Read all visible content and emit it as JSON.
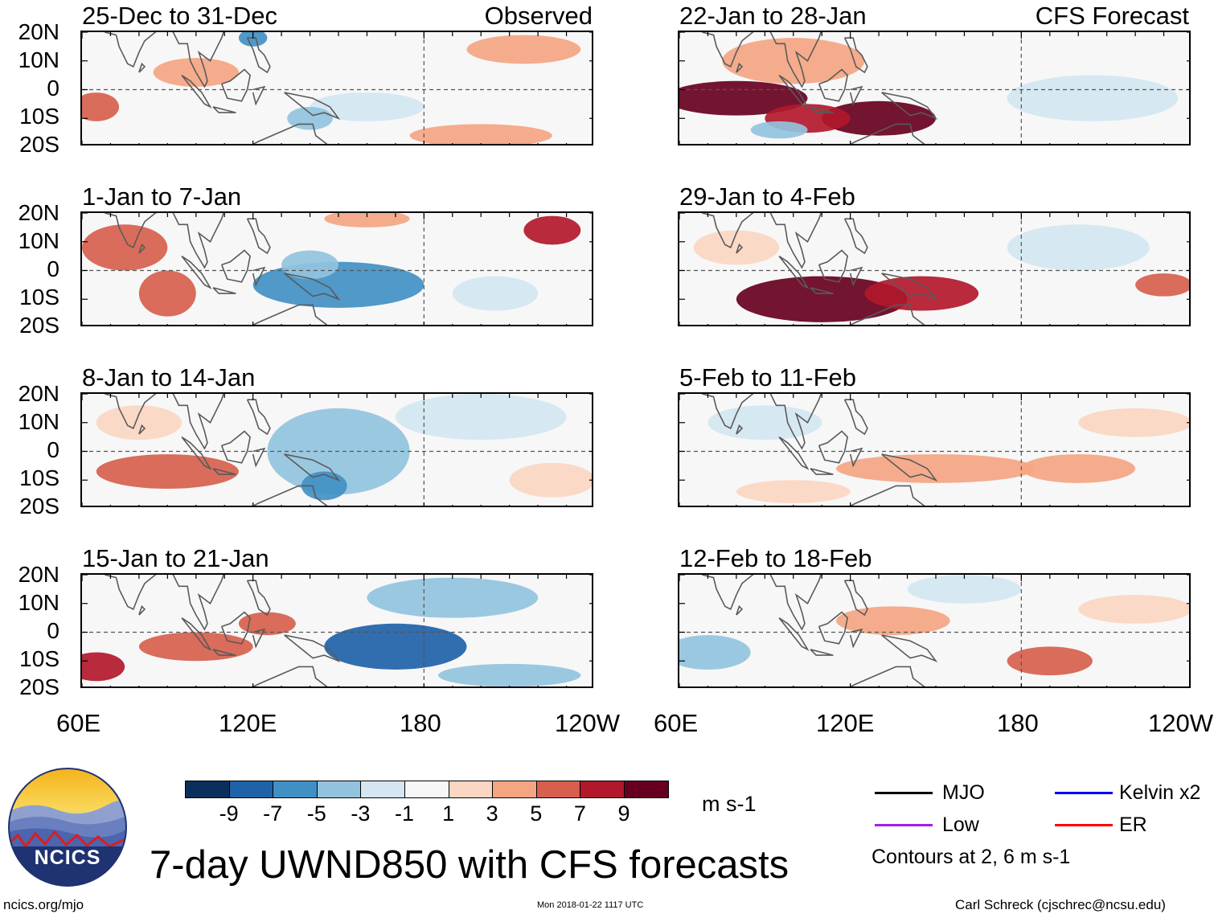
{
  "panels": [
    {
      "title": "25-Dec to 31-Dec",
      "tag": "Observed"
    },
    {
      "title": "1-Jan to 7-Jan",
      "tag": ""
    },
    {
      "title": "8-Jan to 14-Jan",
      "tag": ""
    },
    {
      "title": "15-Jan to 21-Jan",
      "tag": ""
    },
    {
      "title": "22-Jan to 28-Jan",
      "tag": "CFS Forecast"
    },
    {
      "title": "29-Jan to 4-Feb",
      "tag": ""
    },
    {
      "title": "5-Feb to 11-Feb",
      "tag": ""
    },
    {
      "title": "12-Feb to 18-Feb",
      "tag": ""
    }
  ],
  "lat_labels": [
    "20N",
    "10N",
    "0",
    "10S",
    "20S"
  ],
  "lon_labels": [
    "60E",
    "120E",
    "180",
    "120W"
  ],
  "colorbar": {
    "colors": [
      "#0b2f5c",
      "#1f62a8",
      "#4190c4",
      "#92c3de",
      "#d3e6f1",
      "#f7f7f7",
      "#fbd6c2",
      "#f4a582",
      "#d6604d",
      "#b2182b",
      "#67001f"
    ],
    "labels": [
      "-9",
      "-7",
      "-5",
      "-3",
      "-1",
      "1",
      "3",
      "5",
      "7",
      "9"
    ],
    "units": "m s-1"
  },
  "legend": {
    "items": [
      {
        "label": "MJO",
        "color": "#000000"
      },
      {
        "label": "Kelvin x2",
        "color": "#0000ff"
      },
      {
        "label": "Low",
        "color": "#a020f0"
      },
      {
        "label": "ER",
        "color": "#ff0000"
      }
    ],
    "note": "Contours at 2, 6 m s-1"
  },
  "logo_text": "NCICS",
  "title": "7-day UWND850 with CFS forecasts",
  "footer": {
    "left": "ncics.org/mjo",
    "center": "Mon 2018-01-22 1117 UTC",
    "right": "Carl Schreck (cjschrec@ncsu.edu)"
  },
  "chart_data": {
    "type": "heatmap",
    "title": "7-day UWND850 with CFS forecasts",
    "variable": "850-hPa zonal wind anomaly",
    "units": "m s-1",
    "lat_range": [
      -20,
      20
    ],
    "lon_range": [
      60,
      240
    ],
    "contour_levels_m_s": [
      2,
      6
    ],
    "features": [
      [
        {
          "lon": 120,
          "lat": 18,
          "rx": 5,
          "ry": 3,
          "v": -6
        },
        {
          "lon": 160,
          "lat": -6,
          "rx": 20,
          "ry": 5,
          "v": -3
        },
        {
          "lon": 215,
          "lat": 14,
          "rx": 20,
          "ry": 5,
          "v": 4
        },
        {
          "lon": 65,
          "lat": -6,
          "rx": 8,
          "ry": 5,
          "v": 5
        },
        {
          "lon": 100,
          "lat": 6,
          "rx": 15,
          "ry": 5,
          "v": 3
        },
        {
          "lon": 200,
          "lat": -16,
          "rx": 25,
          "ry": 4,
          "v": 4
        },
        {
          "lon": 140,
          "lat": -10,
          "rx": 8,
          "ry": 4,
          "v": -5
        }
      ],
      [
        {
          "lon": 75,
          "lat": 8,
          "rx": 15,
          "ry": 8,
          "v": 6
        },
        {
          "lon": 90,
          "lat": -8,
          "rx": 10,
          "ry": 8,
          "v": 5
        },
        {
          "lon": 150,
          "lat": -5,
          "rx": 30,
          "ry": 8,
          "v": -6
        },
        {
          "lon": 140,
          "lat": 2,
          "rx": 10,
          "ry": 5,
          "v": -5
        },
        {
          "lon": 225,
          "lat": 14,
          "rx": 10,
          "ry": 5,
          "v": 8
        },
        {
          "lon": 160,
          "lat": 18,
          "rx": 15,
          "ry": 3,
          "v": 4
        },
        {
          "lon": 205,
          "lat": -8,
          "rx": 15,
          "ry": 6,
          "v": -3
        }
      ],
      [
        {
          "lon": 90,
          "lat": -7,
          "rx": 25,
          "ry": 6,
          "v": 5
        },
        {
          "lon": 150,
          "lat": 0,
          "rx": 25,
          "ry": 15,
          "v": -4
        },
        {
          "lon": 145,
          "lat": -12,
          "rx": 8,
          "ry": 5,
          "v": -7
        },
        {
          "lon": 200,
          "lat": 12,
          "rx": 30,
          "ry": 8,
          "v": -2
        },
        {
          "lon": 80,
          "lat": 10,
          "rx": 15,
          "ry": 6,
          "v": 2
        },
        {
          "lon": 225,
          "lat": -10,
          "rx": 15,
          "ry": 6,
          "v": 2
        }
      ],
      [
        {
          "lon": 170,
          "lat": -5,
          "rx": 25,
          "ry": 8,
          "v": -9
        },
        {
          "lon": 190,
          "lat": 12,
          "rx": 30,
          "ry": 7,
          "v": -5
        },
        {
          "lon": 65,
          "lat": -12,
          "rx": 10,
          "ry": 5,
          "v": 7
        },
        {
          "lon": 100,
          "lat": -5,
          "rx": 20,
          "ry": 5,
          "v": 5
        },
        {
          "lon": 125,
          "lat": 3,
          "rx": 10,
          "ry": 4,
          "v": 6
        },
        {
          "lon": 210,
          "lat": -15,
          "rx": 25,
          "ry": 4,
          "v": -4
        }
      ],
      [
        {
          "lon": 80,
          "lat": -3,
          "rx": 25,
          "ry": 6,
          "v": 9
        },
        {
          "lon": 130,
          "lat": -10,
          "rx": 20,
          "ry": 6,
          "v": 9
        },
        {
          "lon": 105,
          "lat": -10,
          "rx": 15,
          "ry": 5,
          "v": 7
        },
        {
          "lon": 100,
          "lat": 10,
          "rx": 25,
          "ry": 8,
          "v": 3
        },
        {
          "lon": 205,
          "lat": -3,
          "rx": 30,
          "ry": 8,
          "v": -2
        },
        {
          "lon": 95,
          "lat": -14,
          "rx": 10,
          "ry": 3,
          "v": -4
        }
      ],
      [
        {
          "lon": 110,
          "lat": -10,
          "rx": 30,
          "ry": 8,
          "v": 10
        },
        {
          "lon": 145,
          "lat": -8,
          "rx": 20,
          "ry": 6,
          "v": 7
        },
        {
          "lon": 230,
          "lat": -5,
          "rx": 10,
          "ry": 4,
          "v": 6
        },
        {
          "lon": 200,
          "lat": 8,
          "rx": 25,
          "ry": 8,
          "v": -2
        },
        {
          "lon": 80,
          "lat": 8,
          "rx": 15,
          "ry": 6,
          "v": 2
        }
      ],
      [
        {
          "lon": 150,
          "lat": -6,
          "rx": 35,
          "ry": 5,
          "v": 4
        },
        {
          "lon": 200,
          "lat": -6,
          "rx": 20,
          "ry": 5,
          "v": 3
        },
        {
          "lon": 220,
          "lat": 10,
          "rx": 20,
          "ry": 5,
          "v": 2
        },
        {
          "lon": 90,
          "lat": 10,
          "rx": 20,
          "ry": 6,
          "v": -2
        },
        {
          "lon": 100,
          "lat": -14,
          "rx": 20,
          "ry": 4,
          "v": 2
        }
      ],
      [
        {
          "lon": 70,
          "lat": -7,
          "rx": 15,
          "ry": 6,
          "v": -5
        },
        {
          "lon": 135,
          "lat": 4,
          "rx": 20,
          "ry": 5,
          "v": 3
        },
        {
          "lon": 190,
          "lat": -10,
          "rx": 15,
          "ry": 5,
          "v": 5
        },
        {
          "lon": 220,
          "lat": 8,
          "rx": 20,
          "ry": 5,
          "v": 2
        },
        {
          "lon": 160,
          "lat": 15,
          "rx": 20,
          "ry": 5,
          "v": -2
        }
      ]
    ]
  }
}
